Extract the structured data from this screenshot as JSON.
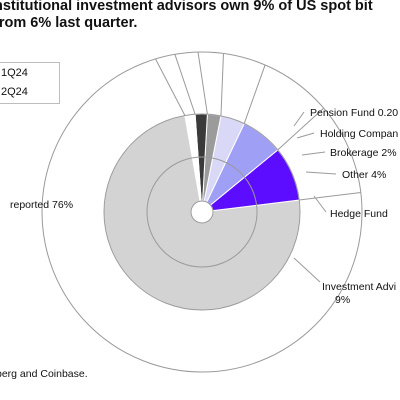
{
  "page": {
    "title_line1": "nstitutional investment advisors own 9% of US spot bit",
    "title_line2": "from 6% last quarter.",
    "source": "berg and Coinbase."
  },
  "legend": [
    {
      "label": "1Q24",
      "color": "#ffffff"
    },
    {
      "label": "2Q24",
      "color": "#ffffff"
    }
  ],
  "chart_data": {
    "type": "pie",
    "subtype": "nested-donut",
    "rings": [
      "1Q24",
      "2Q24"
    ],
    "categories": [
      "Not reported",
      "Investment Advisor",
      "Hedge Fund",
      "Other",
      "Brokerage",
      "Holding Company",
      "Pension Fund"
    ],
    "series": [
      {
        "name": "2Q24",
        "values": [
          76,
          9,
          7,
          4,
          2,
          2,
          0.2
        ]
      }
    ],
    "labels": [
      "reported 76%",
      "Investment Advi",
      "9%",
      "Hedge Fund",
      "Other 4%",
      "Brokerage 2%",
      "Holding Compan",
      "Pension Fund 0.20"
    ],
    "colors": {
      "Not reported": "#d3d3d3",
      "Investment Advisor": "#5c0dff",
      "Hedge Fund": "#9f9ff5",
      "Other": "#d9d9f7",
      "Brokerage": "#9b9b9b",
      "Holding Company": "#3a3a3a",
      "Pension Fund": "#ffffff"
    }
  }
}
